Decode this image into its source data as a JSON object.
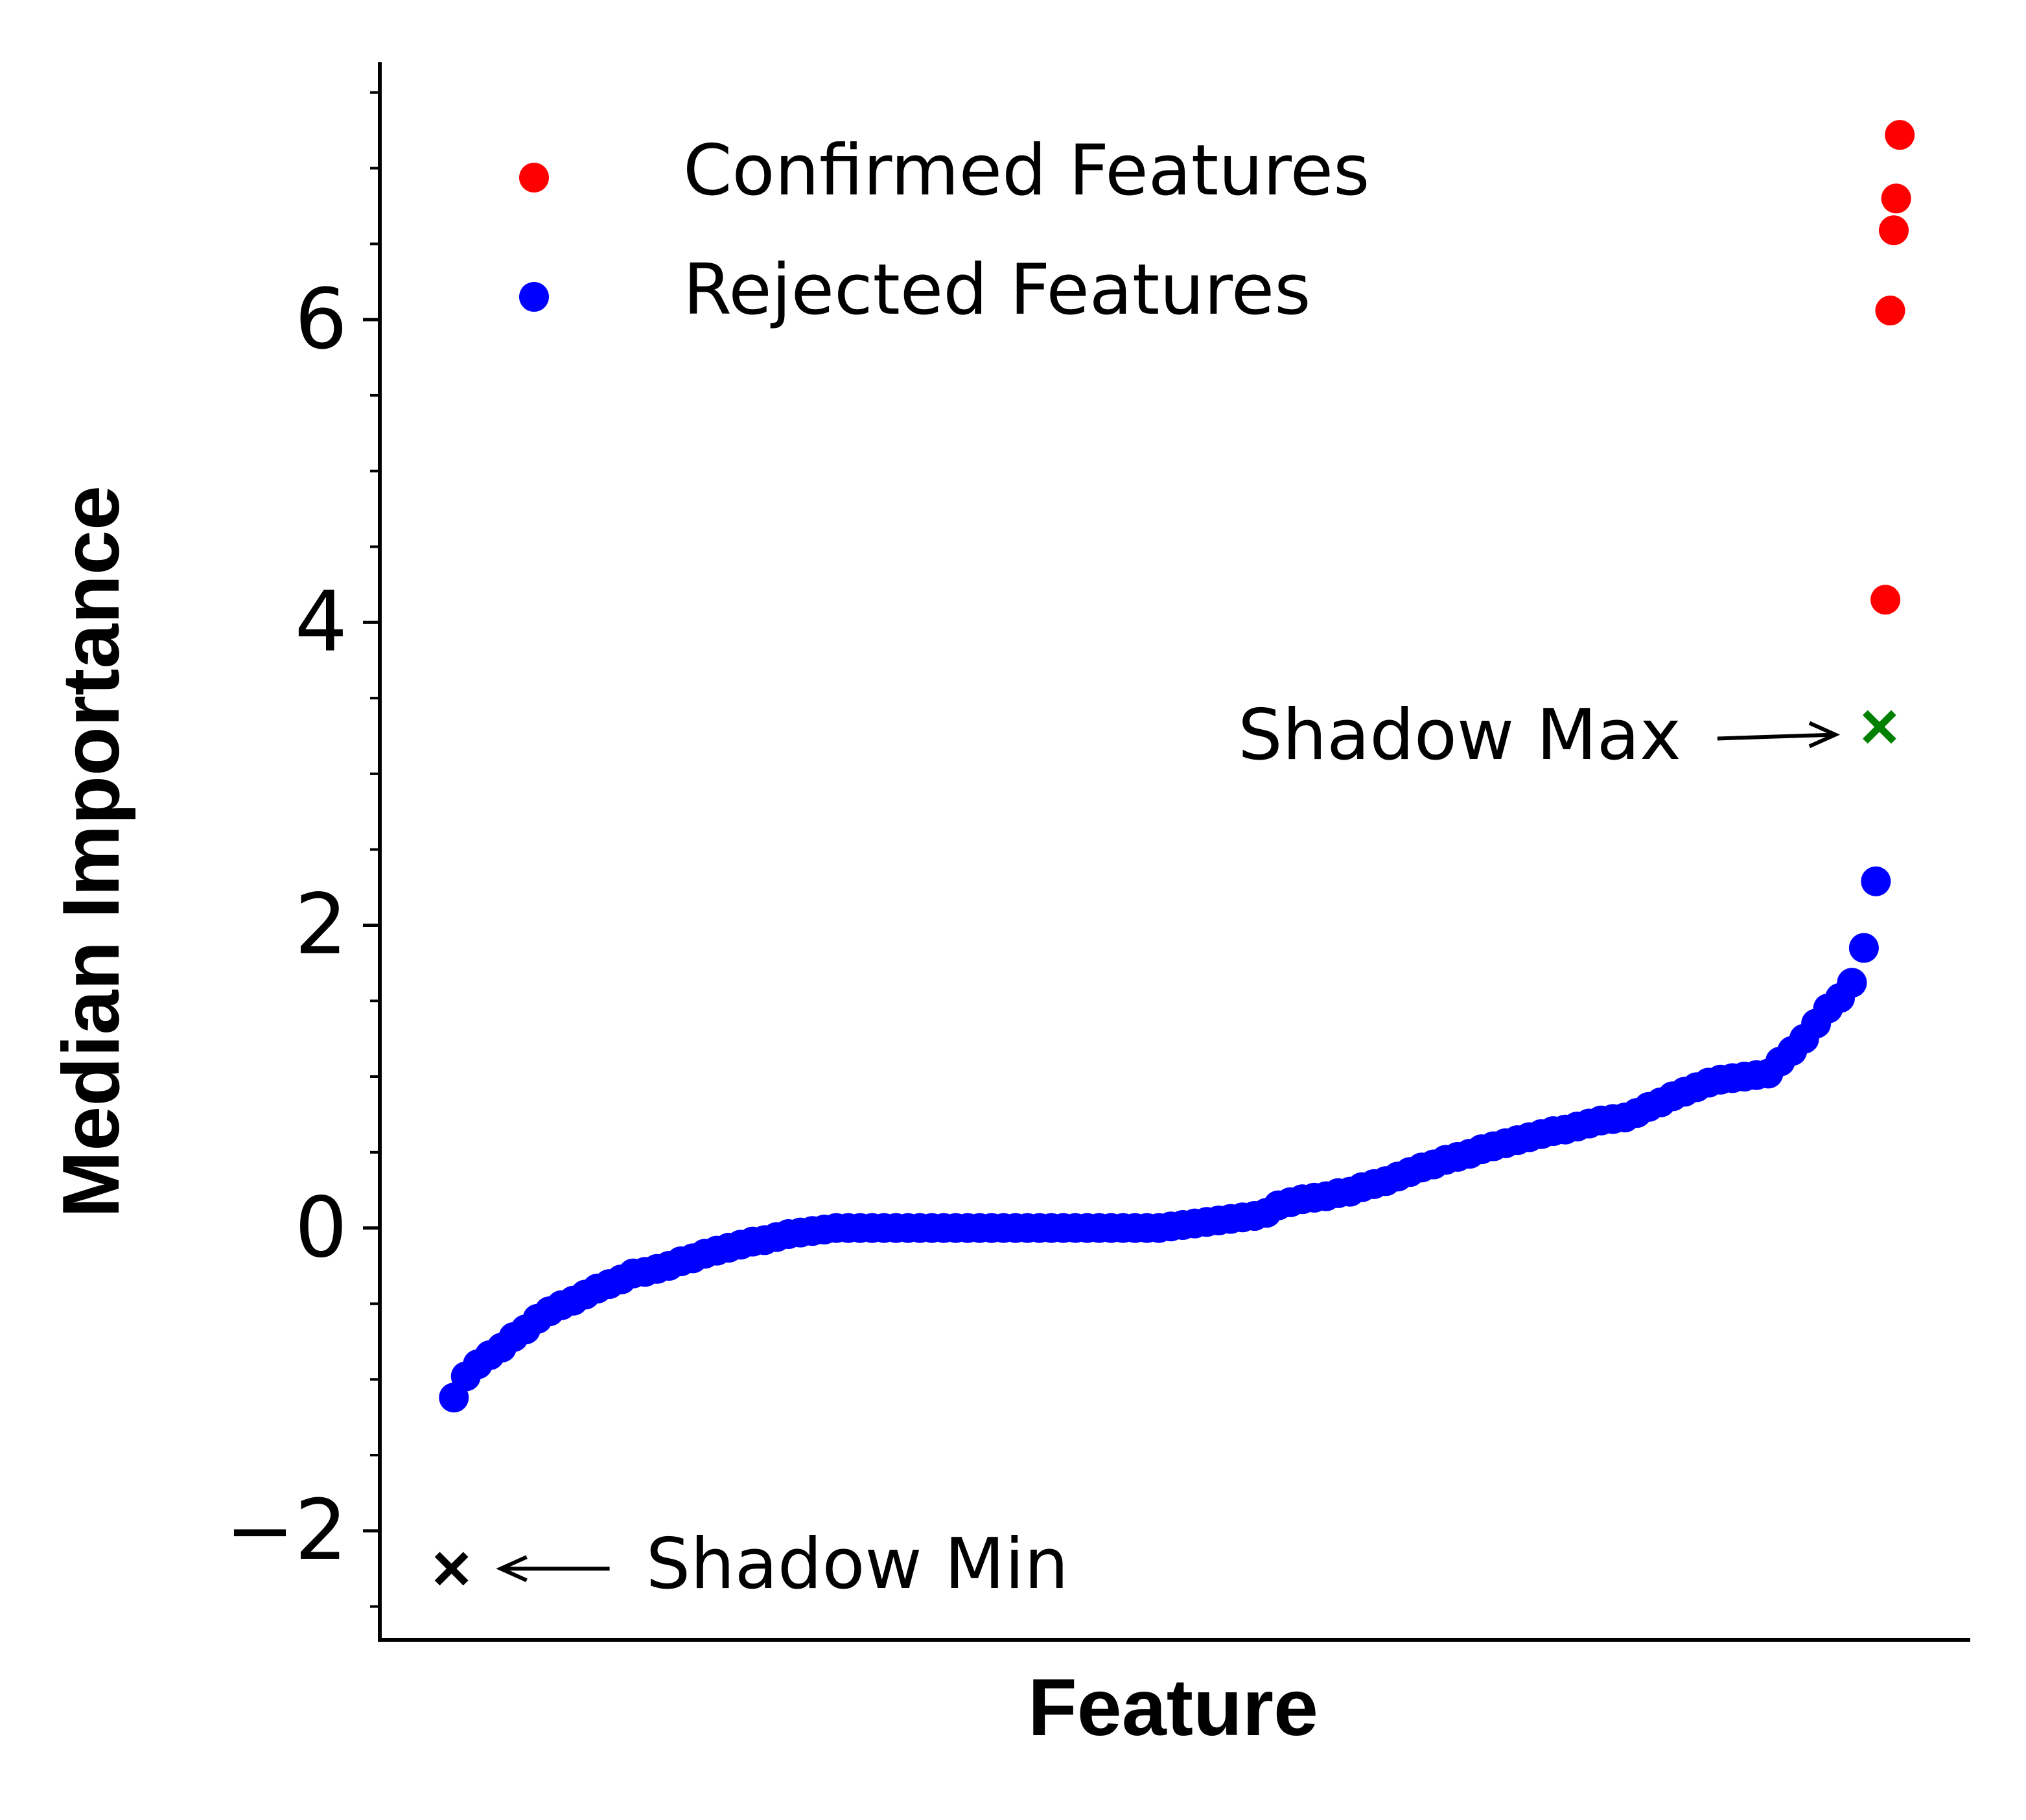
{
  "chart_data": {
    "type": "scatter",
    "xlabel": "Feature",
    "ylabel": "Median Importance",
    "xlim": [
      -6.2,
      126.9
    ],
    "ylim": [
      -2.72,
      7.7
    ],
    "yticks": [
      {
        "value": -2,
        "label": "−2"
      },
      0,
      2,
      4,
      6
    ],
    "yticks_minor": [
      -2.5,
      -1.5,
      -1,
      -0.5,
      0.5,
      1,
      1.5,
      2.5,
      3,
      3.5,
      4.5,
      5,
      5.5,
      6.5,
      7,
      7.5
    ],
    "legend": "upper left",
    "series": [
      {
        "name": "Rejected Features",
        "color": "#0000ff",
        "x": [
          0,
          1,
          2,
          3,
          4,
          5,
          6,
          7,
          8,
          9,
          10,
          11,
          12,
          13,
          14,
          15,
          16,
          17,
          18,
          19,
          20,
          21,
          22,
          23,
          24,
          25,
          26,
          27,
          28,
          29,
          30,
          31,
          32,
          33,
          34,
          35,
          36,
          37,
          38,
          39,
          40,
          41,
          42,
          43,
          44,
          45,
          46,
          47,
          48,
          49,
          50,
          51,
          52,
          53,
          54,
          55,
          56,
          57,
          58,
          59,
          60,
          61,
          62,
          63,
          64,
          65,
          66,
          67,
          68,
          69,
          70,
          71,
          72,
          73,
          74,
          75,
          76,
          77,
          78,
          79,
          80,
          81,
          82,
          83,
          84,
          85,
          86,
          87,
          88,
          89,
          90,
          91,
          92,
          93,
          94,
          95,
          96,
          97,
          98,
          99,
          100,
          101,
          102,
          103,
          104,
          105,
          106,
          107,
          108,
          109,
          110,
          111,
          112,
          113,
          114,
          115,
          116,
          117,
          118,
          119
        ],
        "values": [
          -1.12,
          -0.98,
          -0.9,
          -0.84,
          -0.79,
          -0.72,
          -0.67,
          -0.6,
          -0.55,
          -0.51,
          -0.48,
          -0.44,
          -0.4,
          -0.37,
          -0.34,
          -0.3,
          -0.29,
          -0.27,
          -0.25,
          -0.22,
          -0.2,
          -0.17,
          -0.15,
          -0.13,
          -0.11,
          -0.09,
          -0.08,
          -0.06,
          -0.04,
          -0.03,
          -0.02,
          -0.01,
          0,
          0,
          0,
          0,
          0,
          0,
          0,
          0,
          0,
          0,
          0,
          0,
          0,
          0,
          0,
          0,
          0,
          0,
          0,
          0,
          0,
          0,
          0,
          0,
          0,
          0,
          0,
          0,
          0.01,
          0.02,
          0.03,
          0.04,
          0.05,
          0.06,
          0.07,
          0.08,
          0.1,
          0.15,
          0.17,
          0.19,
          0.2,
          0.21,
          0.23,
          0.24,
          0.27,
          0.29,
          0.31,
          0.34,
          0.37,
          0.4,
          0.42,
          0.45,
          0.47,
          0.49,
          0.52,
          0.54,
          0.56,
          0.58,
          0.6,
          0.62,
          0.64,
          0.65,
          0.67,
          0.69,
          0.71,
          0.72,
          0.73,
          0.76,
          0.8,
          0.83,
          0.87,
          0.9,
          0.93,
          0.96,
          0.98,
          0.99,
          1.0,
          1.01,
          1.02,
          1.1,
          1.17,
          1.25,
          1.35,
          1.45,
          1.52,
          1.62,
          1.85,
          2.29
        ]
      },
      {
        "name": "Confirmed Features",
        "color": "#ff0000",
        "x": [
          121,
          120.7,
          120.5,
          120.2,
          119.8
        ],
        "values": [
          7.22,
          6.8,
          6.59,
          6.06,
          4.15
        ]
      }
    ],
    "legend_order": [
      1,
      0
    ],
    "markers": [
      {
        "label": "Shadow Max",
        "x": 119.3,
        "value": 3.31,
        "color": "#008000",
        "side": "left"
      },
      {
        "label": "Shadow Min",
        "x": -0.2,
        "value": -2.25,
        "color": "#000000",
        "side": "right"
      }
    ]
  }
}
